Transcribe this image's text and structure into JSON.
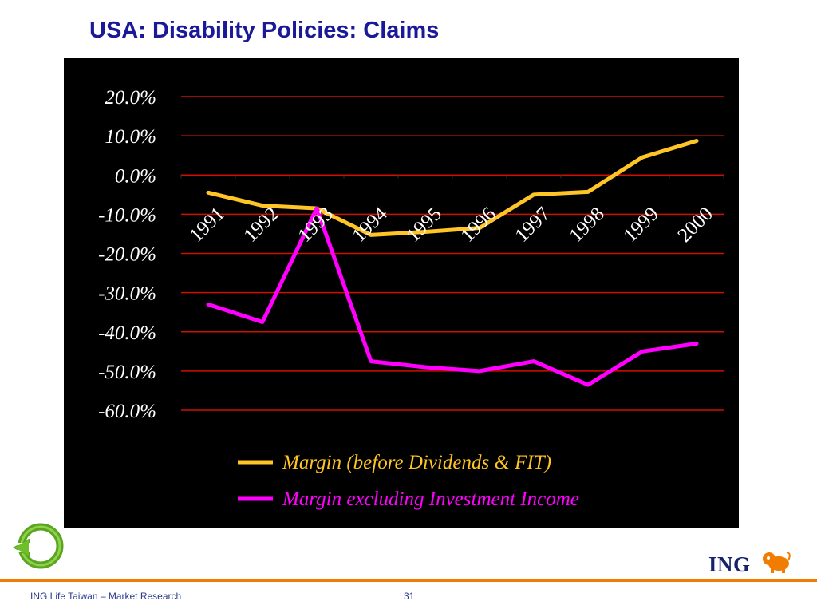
{
  "slide": {
    "title": "USA: Disability Policies: Claims",
    "footer": "ING Life Taiwan – Market Research",
    "page_number": "31",
    "logo_text": "ING"
  },
  "icons": {
    "back": "green-circular-back-arrow-icon",
    "logo": "ing-lion-icon"
  },
  "colors": {
    "title": "#1a1a99",
    "chart_background": "#000000",
    "gridline": "#cc1100",
    "series_margin": "#ffc425",
    "series_excluding_investment": "#ff00ff",
    "footer_rule": "#f07d00"
  },
  "chart_data": {
    "type": "line",
    "x": [
      "1991",
      "1992",
      "1993",
      "1994",
      "1995",
      "1996",
      "1997",
      "1998",
      "1999",
      "2000"
    ],
    "series": [
      {
        "name": "Margin (before Dividends & FIT)",
        "values": [
          -4.5,
          -7.8,
          -8.5,
          -15.3,
          -14.5,
          -13.5,
          -5.0,
          -4.3,
          4.5,
          8.7
        ]
      },
      {
        "name": "Margin excluding Investment Income",
        "values": [
          -33.0,
          -37.5,
          -8.5,
          -47.5,
          -49.0,
          -50.0,
          -47.5,
          -53.5,
          -45.0,
          -43.0
        ]
      }
    ],
    "ylim": [
      -60,
      20
    ],
    "yticks": [
      "20.0%",
      "10.0%",
      "0.0%",
      "-10.0%",
      "-20.0%",
      "-30.0%",
      "-40.0%",
      "-50.0%",
      "-60.0%"
    ],
    "ytick_values": [
      20,
      10,
      0,
      -10,
      -20,
      -30,
      -40,
      -50,
      -60
    ],
    "grid": true,
    "legend_position": "bottom",
    "title": "",
    "xlabel": "",
    "ylabel": ""
  }
}
